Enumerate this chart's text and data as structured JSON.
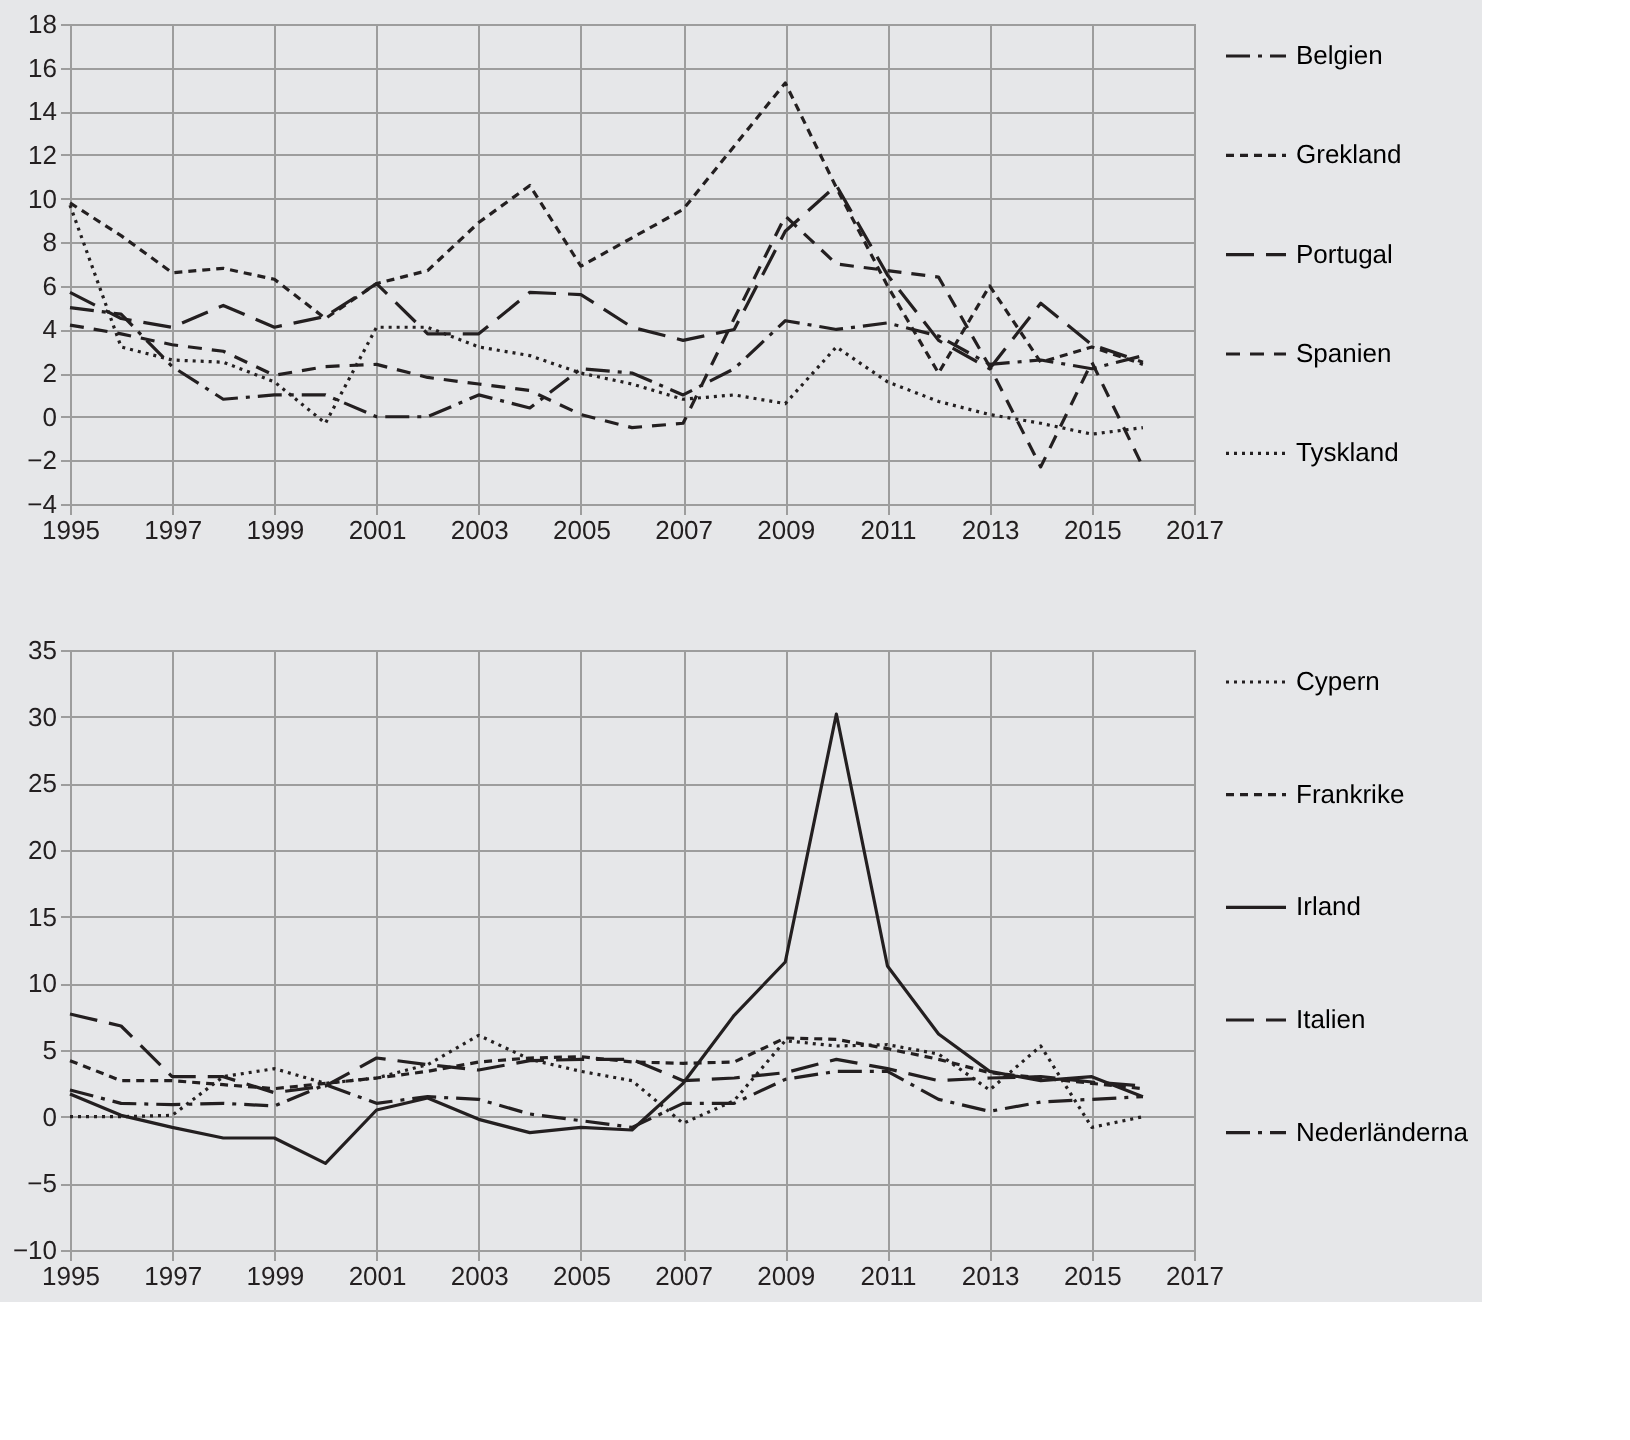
{
  "chart_data": [
    {
      "type": "line",
      "x": [
        1995,
        1996,
        1997,
        1998,
        1999,
        2000,
        2001,
        2002,
        2003,
        2004,
        2005,
        2006,
        2007,
        2008,
        2009,
        2010,
        2011,
        2012,
        2013,
        2014,
        2015,
        2016
      ],
      "xlim": [
        1995,
        2017
      ],
      "xticks": [
        1995,
        1997,
        1999,
        2001,
        2003,
        2005,
        2007,
        2009,
        2011,
        2013,
        2015,
        2017
      ],
      "ylim": [
        -4,
        18
      ],
      "yticks": [
        -4,
        -2,
        0,
        2,
        4,
        6,
        8,
        10,
        12,
        14,
        16,
        18
      ],
      "grid": true,
      "legend": "right",
      "series": [
        {
          "name": "Belgien",
          "color": "#231f20",
          "line_style": "dashdot",
          "values": [
            5.0,
            4.7,
            2.3,
            0.8,
            1.0,
            1.0,
            0.0,
            0.0,
            1.0,
            0.4,
            2.2,
            2.0,
            1.0,
            2.2,
            4.4,
            4.0,
            4.3,
            3.7,
            2.4,
            2.6,
            2.2,
            2.8
          ]
        },
        {
          "name": "Grekland",
          "color": "#231f20",
          "line_style": "dashed",
          "values": [
            9.8,
            8.3,
            6.6,
            6.8,
            6.3,
            4.5,
            6.1,
            6.7,
            8.9,
            10.6,
            6.9,
            8.2,
            9.5,
            12.4,
            15.3,
            10.5,
            6.0,
            2.0,
            6.0,
            2.5,
            3.2,
            2.4
          ]
        },
        {
          "name": "Portugal",
          "color": "#231f20",
          "line_style": "longdash",
          "values": [
            5.7,
            4.5,
            4.1,
            5.1,
            4.1,
            4.6,
            6.1,
            3.8,
            3.8,
            5.7,
            5.6,
            4.1,
            3.5,
            4.0,
            8.5,
            10.6,
            6.5,
            3.5,
            2.2,
            5.2,
            3.3,
            2.5
          ]
        },
        {
          "name": "Spanien",
          "color": "#231f20",
          "line_style": "mediumdash",
          "values": [
            4.2,
            3.8,
            3.3,
            3.0,
            1.9,
            2.3,
            2.4,
            1.8,
            1.5,
            1.2,
            0.1,
            -0.5,
            -0.3,
            4.5,
            9.2,
            7.0,
            6.7,
            6.4,
            2.3,
            -2.3,
            2.5,
            -2.3
          ]
        },
        {
          "name": "Tyskland",
          "color": "#231f20",
          "line_style": "dotted",
          "values": [
            9.7,
            3.2,
            2.6,
            2.5,
            1.6,
            -0.3,
            4.1,
            4.1,
            3.2,
            2.8,
            2.0,
            1.5,
            0.8,
            1.0,
            0.6,
            3.2,
            1.6,
            0.7,
            0.1,
            -0.3,
            -0.8,
            -0.5
          ]
        }
      ]
    },
    {
      "type": "line",
      "x": [
        1995,
        1996,
        1997,
        1998,
        1999,
        2000,
        2001,
        2002,
        2003,
        2004,
        2005,
        2006,
        2007,
        2008,
        2009,
        2010,
        2011,
        2012,
        2013,
        2014,
        2015,
        2016
      ],
      "xlim": [
        1995,
        2017
      ],
      "xticks": [
        1995,
        1997,
        1999,
        2001,
        2003,
        2005,
        2007,
        2009,
        2011,
        2013,
        2015,
        2017
      ],
      "ylim": [
        -10,
        35
      ],
      "yticks": [
        -10,
        -5,
        0,
        5,
        10,
        15,
        20,
        25,
        30,
        35
      ],
      "grid": true,
      "legend": "right",
      "series": [
        {
          "name": "Cypern",
          "color": "#231f20",
          "line_style": "dotted",
          "values": [
            0.0,
            0.0,
            0.1,
            3.0,
            3.6,
            2.5,
            2.9,
            3.9,
            6.1,
            4.3,
            3.4,
            2.7,
            -0.5,
            1.2,
            5.7,
            5.3,
            5.4,
            4.7,
            2.0,
            5.3,
            -0.8,
            0.0
          ]
        },
        {
          "name": "Frankrike",
          "color": "#231f20",
          "line_style": "dashed",
          "values": [
            4.2,
            2.7,
            2.7,
            2.4,
            2.1,
            2.5,
            2.9,
            3.4,
            4.1,
            4.4,
            4.5,
            4.1,
            4.0,
            4.1,
            5.9,
            5.8,
            5.1,
            4.3,
            3.3,
            2.9,
            2.5,
            2.1
          ]
        },
        {
          "name": "Irland",
          "color": "#231f20",
          "line_style": "solid",
          "values": [
            1.7,
            0.1,
            -0.8,
            -1.6,
            -1.6,
            -3.5,
            0.5,
            1.4,
            -0.2,
            -1.2,
            -0.8,
            -1.0,
            2.5,
            7.6,
            11.6,
            30.2,
            11.3,
            6.2,
            3.4,
            2.7,
            3.0,
            1.5
          ]
        },
        {
          "name": "Italien",
          "color": "#231f20",
          "line_style": "longdash",
          "values": [
            7.7,
            6.8,
            3.0,
            3.0,
            1.8,
            2.3,
            4.4,
            3.9,
            3.5,
            4.2,
            4.3,
            4.3,
            2.7,
            2.9,
            3.3,
            4.3,
            3.6,
            2.7,
            2.9,
            3.0,
            2.6,
            2.3
          ]
        },
        {
          "name": "Nederländerna",
          "color": "#231f20",
          "line_style": "dashdot",
          "values": [
            2.0,
            1.0,
            0.9,
            1.0,
            0.8,
            2.4,
            1.0,
            1.5,
            1.3,
            0.2,
            -0.3,
            -0.8,
            1.0,
            1.0,
            2.8,
            3.4,
            3.4,
            1.3,
            0.4,
            1.1,
            1.3,
            1.5
          ]
        }
      ]
    }
  ]
}
